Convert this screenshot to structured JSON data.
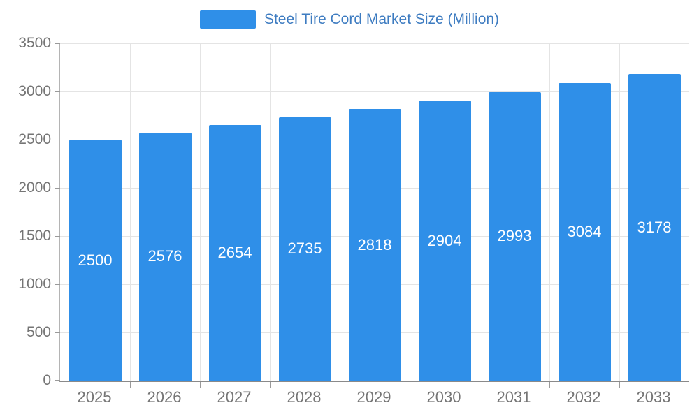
{
  "chart_data": {
    "type": "bar",
    "title": "Steel Tire Cord Market Size (Million)",
    "categories": [
      "2025",
      "2026",
      "2027",
      "2028",
      "2029",
      "2030",
      "2031",
      "2032",
      "2033"
    ],
    "values": [
      2500,
      2576,
      2654,
      2735,
      2818,
      2904,
      2993,
      3084,
      3178
    ],
    "ylim": [
      0,
      3500
    ],
    "yticks": [
      0,
      500,
      1000,
      1500,
      2000,
      2500,
      3000,
      3500
    ],
    "legend_position": "top",
    "grid": true,
    "colors": {
      "bar": "#2F8FE8",
      "value_label": "#FFFFFF",
      "legend_text": "#3E7CC1",
      "axis_label": "#757575",
      "gridline": "#E4E4E4",
      "tick": "#9A9A9A"
    }
  }
}
